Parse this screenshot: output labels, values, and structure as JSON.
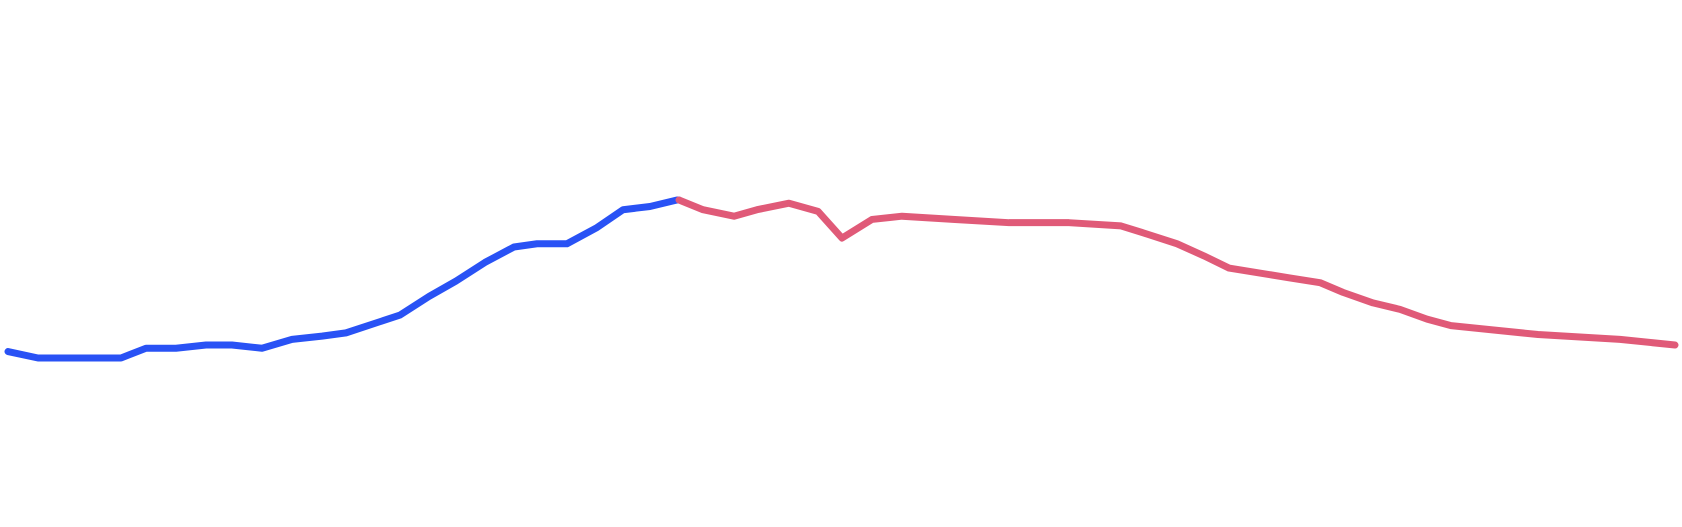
{
  "chart_data": {
    "type": "line",
    "grid": false,
    "legend": "none",
    "axes_visible": false,
    "ylim": [
      0,
      100
    ],
    "series": [
      {
        "color": "#2952f5",
        "x": [
          0,
          1,
          2,
          3,
          4,
          5,
          6,
          7,
          8,
          9,
          10,
          11,
          12,
          13,
          14,
          15,
          16,
          17,
          18,
          19,
          20,
          21,
          22,
          23
        ],
        "values": [
          31.5,
          30.7,
          30.7,
          30.7,
          31.9,
          31.9,
          32.3,
          32.3,
          31.9,
          33.0,
          33.4,
          33.8,
          36.0,
          38.3,
          40.2,
          42.5,
          44.4,
          44.8,
          44.8,
          46.8,
          49.0,
          49.4,
          50.2,
          50.2
        ],
        "_x_pos": [
          8,
          38,
          68,
          121,
          146,
          176,
          206,
          232,
          262,
          292,
          322,
          346,
          400,
          429,
          456,
          485,
          514,
          537,
          567,
          597,
          623,
          650,
          677,
          679
        ]
      },
      {
        "color": "#e05a78",
        "x": [
          23,
          24,
          25,
          26,
          27,
          28,
          29,
          30,
          31,
          32,
          33,
          34,
          35,
          36,
          37,
          38,
          39,
          40,
          41,
          42,
          43,
          44,
          45,
          46,
          47,
          48,
          49,
          50,
          51
        ],
        "values": [
          50.2,
          49.0,
          48.2,
          49.0,
          49.8,
          48.8,
          45.5,
          47.8,
          48.2,
          47.8,
          47.4,
          47.4,
          47.4,
          47.0,
          46.0,
          44.8,
          43.3,
          41.8,
          40.6,
          40.0,
          38.8,
          37.5,
          36.7,
          35.5,
          34.7,
          34.2,
          33.6,
          33.0,
          32.3
        ],
        "_x_pos": [
          679,
          703,
          734,
          757,
          789,
          818,
          842,
          872,
          902,
          955,
          1009,
          1035,
          1069,
          1121,
          1147,
          1177,
          1204,
          1229,
          1289,
          1320,
          1343,
          1373,
          1400,
          1427,
          1451,
          1490,
          1538,
          1620,
          1675
        ]
      }
    ]
  }
}
